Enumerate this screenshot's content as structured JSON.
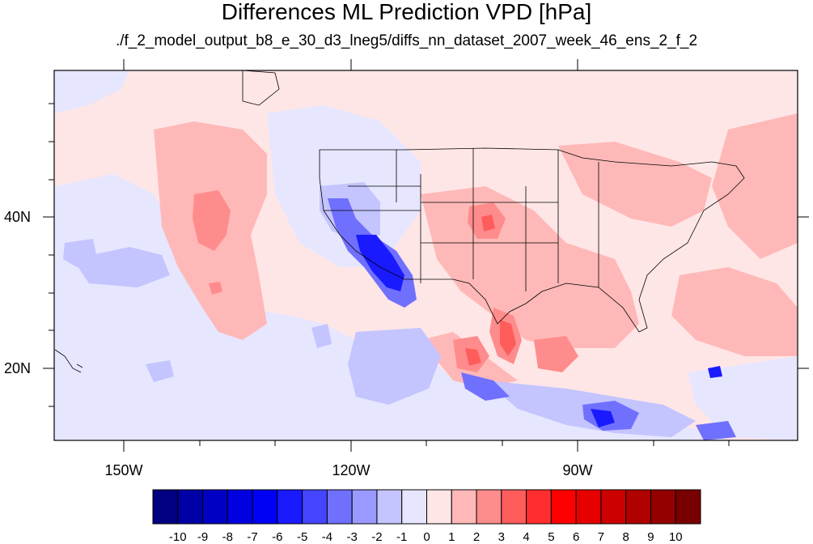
{
  "title": "Differences ML Prediction VPD [hPa]",
  "subtitle": "./f_2_model_output_b8_e_30_d3_lneg5/diffs_nn_dataset_2007_week_46_ens_2_f_2",
  "lon_labels": [
    "150W",
    "120W",
    "90W"
  ],
  "lat_labels": [
    "40N",
    "20N"
  ],
  "colorbar": {
    "tick_labels": [
      "-10",
      "-9",
      "-8",
      "-7",
      "-6",
      "-5",
      "-4",
      "-3",
      "-2",
      "-1",
      "0",
      "1",
      "2",
      "3",
      "4",
      "5",
      "6",
      "7",
      "8",
      "9",
      "10"
    ],
    "colors": [
      "#000080",
      "#0000a4",
      "#0000c4",
      "#0000e0",
      "#0000f5",
      "#1a1aff",
      "#4545ff",
      "#7070ff",
      "#9999ff",
      "#c4c4ff",
      "#e6e6ff",
      "#ffe6e6",
      "#ffb8b8",
      "#ff8c8c",
      "#ff5c5c",
      "#ff2e2e",
      "#ff0000",
      "#e60000",
      "#cc0000",
      "#b00000",
      "#940000",
      "#780000"
    ]
  }
}
